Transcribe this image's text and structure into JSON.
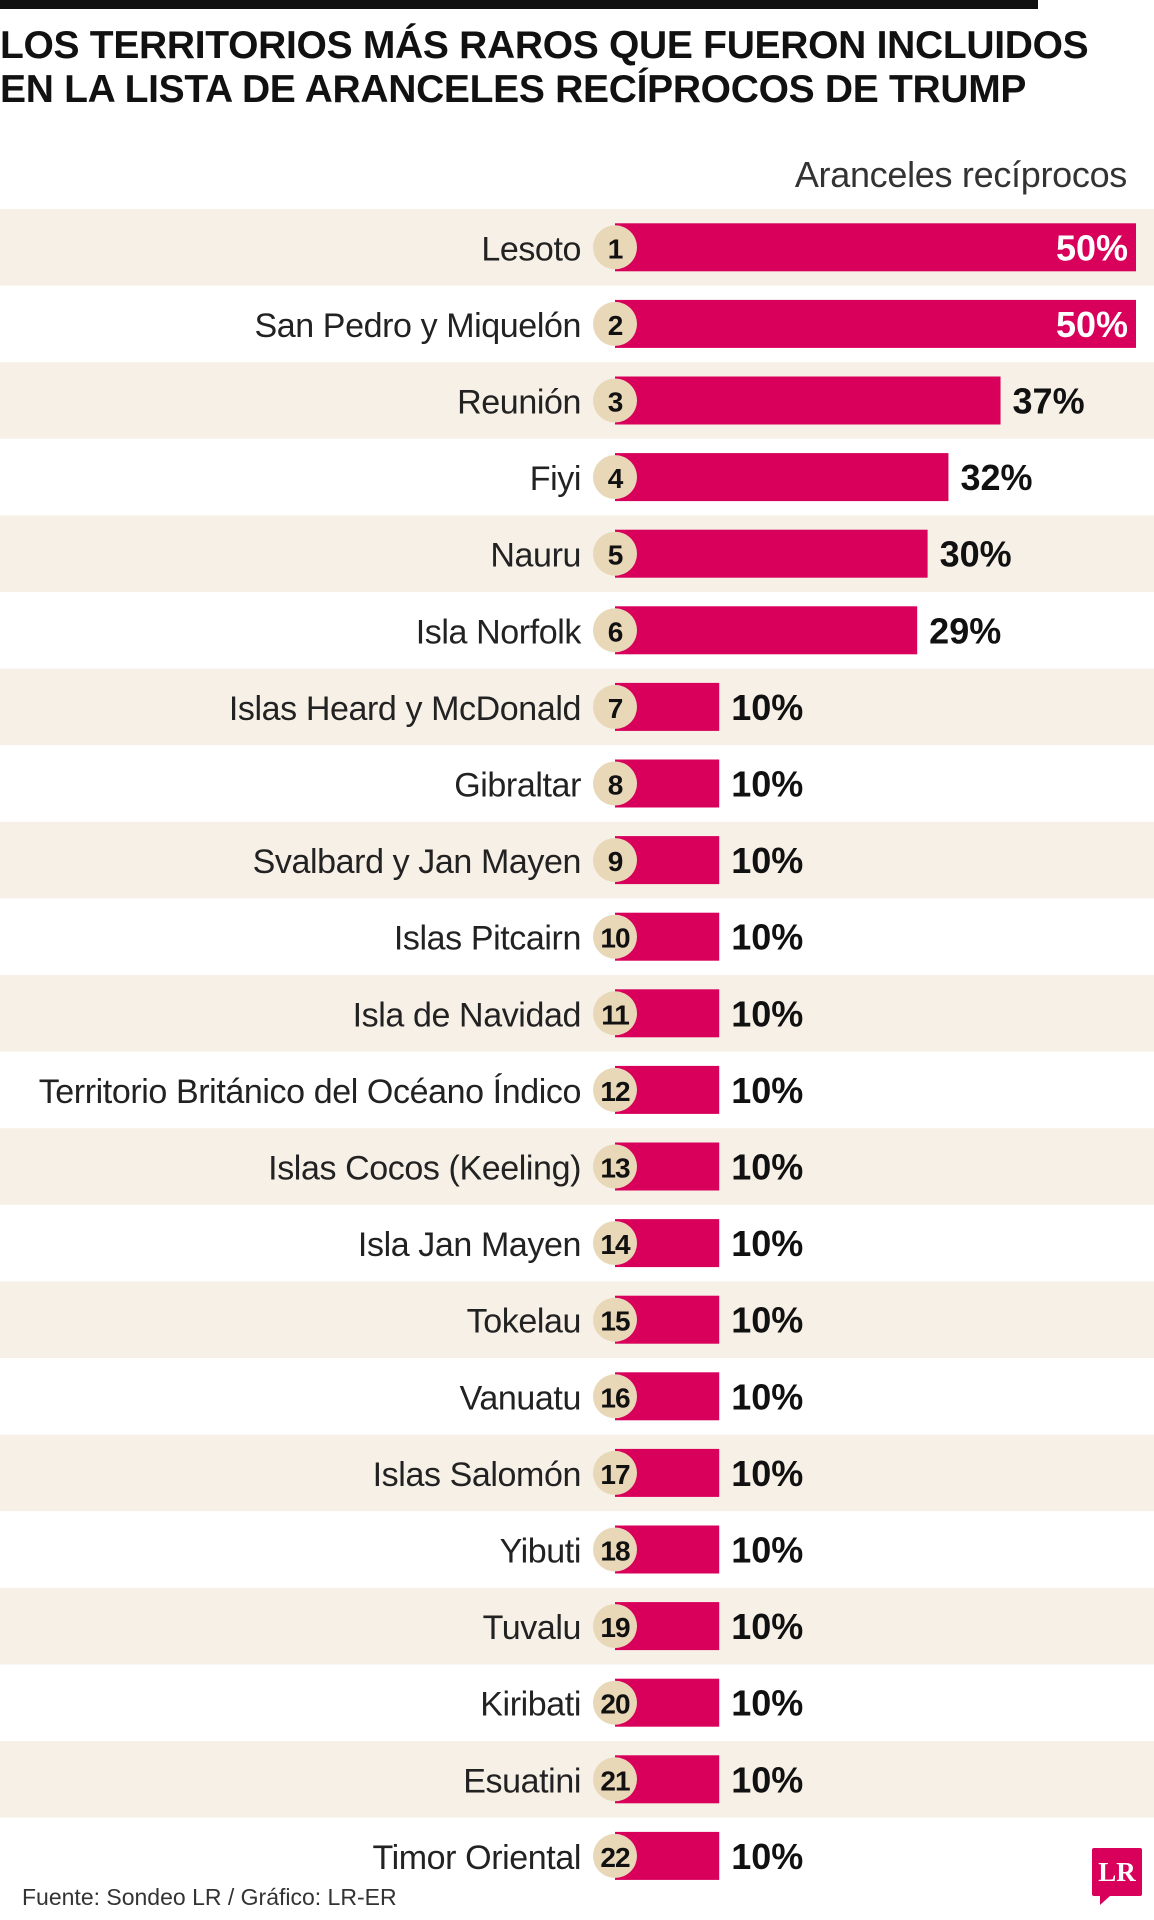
{
  "title": {
    "line1": "LOS TERRITORIOS MÁS RAROS QUE FUERON INCLUIDOS",
    "line2": "EN LA LISTA DE ARANCELES RECÍPROCOS DE TRUMP"
  },
  "column_header": "Aranceles recíprocos",
  "footer": "Fuente: Sondeo LR / Gráfico: LR-ER",
  "logo": "LR",
  "colors": {
    "bar": "#d8005a",
    "stripe": "#f6f0e7",
    "badge": "#e9d8b8",
    "title": "#111111"
  },
  "chart_data": {
    "type": "bar",
    "orientation": "horizontal",
    "unit": "%",
    "xlim": [
      0,
      50
    ],
    "categories": [
      "Lesoto",
      "San Pedro y Miquelón",
      "Reunión",
      "Fiyi",
      "Nauru",
      "Isla Norfolk",
      "Islas Heard y McDonald",
      "Gibraltar",
      "Svalbard y Jan Mayen",
      "Islas Pitcairn",
      "Isla de Navidad",
      "Territorio Británico del Océano Índico",
      "Islas Cocos (Keeling)",
      "Isla Jan Mayen",
      "Tokelau",
      "Vanuatu",
      "Islas Salomón",
      "Yibuti",
      "Tuvalu",
      "Kiribati",
      "Esuatini",
      "Timor Oriental"
    ],
    "ranks": [
      "1",
      "2",
      "3",
      "4",
      "5",
      "6",
      "7",
      "8",
      "9",
      "10",
      "11",
      "12",
      "13",
      "14",
      "15",
      "16",
      "17",
      "18",
      "19",
      "20",
      "21",
      "22"
    ],
    "values": [
      50,
      50,
      37,
      32,
      30,
      29,
      10,
      10,
      10,
      10,
      10,
      10,
      10,
      10,
      10,
      10,
      10,
      10,
      10,
      10,
      10,
      10
    ],
    "value_labels": [
      "50%",
      "50%",
      "37%",
      "32%",
      "30%",
      "29%",
      "10%",
      "10%",
      "10%",
      "10%",
      "10%",
      "10%",
      "10%",
      "10%",
      "10%",
      "10%",
      "10%",
      "10%",
      "10%",
      "10%",
      "10%",
      "10%"
    ]
  }
}
